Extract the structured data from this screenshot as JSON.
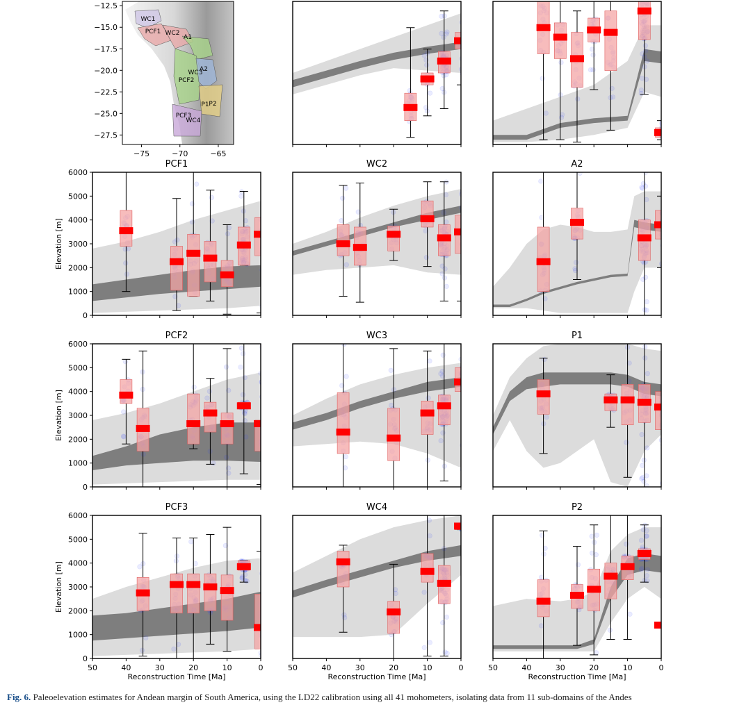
{
  "figure": {
    "caption_label": "Fig. 6.",
    "caption_text": "Paleoelevation estimates for Andean margin of South America, using the LD22 calibration using all 41 mohometers, isolating data from 11 sub-domains of the Andes"
  },
  "map": {
    "lon_ticks": [
      "−75",
      "−70",
      "−65"
    ],
    "lat_ticks": [
      "−12.5",
      "−15.0",
      "−17.5",
      "−20.0",
      "−22.5",
      "−25.0",
      "−27.5"
    ],
    "region_labels": [
      "WC1",
      "PCF1",
      "WC2",
      "A1",
      "A2",
      "WC3",
      "PCF2",
      "P1",
      "P2",
      "PCF3",
      "WC4"
    ],
    "region_colors": [
      "#cfc7e6",
      "#e9a9a9",
      "#a7d38a",
      "#9fb6d9",
      "#e5cf86",
      "#c8a8d8"
    ]
  },
  "axes": {
    "ylabel": "Elevation [m]",
    "xlabel": "Reconstruction Time [Ma]",
    "x_ticks": [
      "50",
      "40",
      "30",
      "20",
      "10",
      "0"
    ],
    "y_ticks": [
      "0",
      "1000",
      "2000",
      "3000",
      "4000",
      "5000",
      "6000"
    ]
  },
  "colors": {
    "outer_band": "#dcdcdc",
    "inner_band": "#7e7e7e",
    "box_fill": "#f4a6a6",
    "median": "#ff0000",
    "points": "#3040ff"
  },
  "chart_data": [
    {
      "title": "",
      "type": "box",
      "xlim": [
        50,
        0
      ],
      "ylim": [
        0,
        6000
      ],
      "band_x": [
        50,
        40,
        30,
        20,
        10,
        0
      ],
      "outer_lo": [
        2100,
        2500,
        2900,
        3200,
        3100,
        3000
      ],
      "outer_hi": [
        3000,
        3500,
        4000,
        4500,
        5000,
        5500
      ],
      "inner_lo": [
        2400,
        2800,
        3200,
        3550,
        3800,
        4000
      ],
      "inner_hi": [
        2700,
        3100,
        3500,
        3850,
        4100,
        4300
      ],
      "boxes": [
        {
          "x": 15,
          "min": 300,
          "q1": 1000,
          "median": 1550,
          "q3": 2150,
          "max": 4900
        },
        {
          "x": 10,
          "min": 1200,
          "q1": 2500,
          "median": 2750,
          "q3": 3000,
          "max": 4000
        },
        {
          "x": 5,
          "min": 1500,
          "q1": 3000,
          "median": 3500,
          "q3": 3900,
          "max": 5600
        },
        {
          "x": 0,
          "min": 2500,
          "q1": 4000,
          "median": 4350,
          "q3": 4700,
          "max": 6000
        }
      ]
    },
    {
      "title": "",
      "type": "box",
      "xlim": [
        50,
        0
      ],
      "ylim": [
        0,
        6000
      ],
      "band_x": [
        50,
        40,
        30,
        20,
        10,
        5,
        0
      ],
      "outer_lo": [
        100,
        100,
        200,
        400,
        700,
        2200,
        2000
      ],
      "outer_hi": [
        1000,
        1500,
        2000,
        2500,
        3500,
        5000,
        5000
      ],
      "inner_lo": [
        200,
        200,
        700,
        900,
        1000,
        3500,
        3400
      ],
      "inner_hi": [
        400,
        400,
        900,
        1100,
        1200,
        4000,
        3900
      ],
      "boxes": [
        {
          "x": 35,
          "min": 200,
          "q1": 3800,
          "median": 4900,
          "q3": 6000,
          "max": 6000
        },
        {
          "x": 30,
          "min": 200,
          "q1": 3600,
          "median": 4500,
          "q3": 5100,
          "max": 6000
        },
        {
          "x": 25,
          "min": 100,
          "q1": 2400,
          "median": 3600,
          "q3": 4700,
          "max": 5600
        },
        {
          "x": 20,
          "min": 2300,
          "q1": 4300,
          "median": 4800,
          "q3": 5300,
          "max": 6000
        },
        {
          "x": 15,
          "min": 600,
          "q1": 3100,
          "median": 4700,
          "q3": 5600,
          "max": 6000
        },
        {
          "x": 5,
          "min": 2100,
          "q1": 4400,
          "median": 5600,
          "q3": 6000,
          "max": 6000
        },
        {
          "x": 0,
          "min": 200,
          "q1": 300,
          "median": 500,
          "q3": 700,
          "max": 1000
        }
      ]
    },
    {
      "title": "PCF1",
      "type": "box",
      "xlim": [
        50,
        0
      ],
      "ylim": [
        0,
        6000
      ],
      "band_x": [
        50,
        40,
        30,
        20,
        10,
        0
      ],
      "outer_lo": [
        100,
        150,
        200,
        250,
        300,
        400
      ],
      "outer_hi": [
        2800,
        3100,
        3500,
        4000,
        4400,
        4800
      ],
      "inner_lo": [
        600,
        750,
        900,
        1000,
        1100,
        1200
      ],
      "inner_hi": [
        1300,
        1500,
        1700,
        1900,
        2050,
        2100
      ],
      "boxes": [
        {
          "x": 40,
          "min": 1000,
          "q1": 2900,
          "median": 3550,
          "q3": 4400,
          "max": 6000
        },
        {
          "x": 25,
          "min": 200,
          "q1": 1050,
          "median": 2250,
          "q3": 2900,
          "max": 4900
        },
        {
          "x": 20,
          "min": 800,
          "q1": 800,
          "median": 2600,
          "q3": 3400,
          "max": 6000
        },
        {
          "x": 15,
          "min": 600,
          "q1": 1400,
          "median": 2400,
          "q3": 3100,
          "max": 5250
        },
        {
          "x": 10,
          "min": 50,
          "q1": 1200,
          "median": 1700,
          "q3": 2300,
          "max": 3800
        },
        {
          "x": 5,
          "min": 2100,
          "q1": 2100,
          "median": 2950,
          "q3": 3700,
          "max": 5200
        },
        {
          "x": 0,
          "min": 100,
          "q1": 2500,
          "median": 3400,
          "q3": 4100,
          "max": 6000
        }
      ]
    },
    {
      "title": "WC2",
      "type": "box",
      "xlim": [
        50,
        0
      ],
      "ylim": [
        0,
        6000
      ],
      "band_x": [
        50,
        40,
        30,
        20,
        10,
        0
      ],
      "outer_lo": [
        1700,
        1900,
        2000,
        2100,
        1800,
        1700
      ],
      "outer_hi": [
        3000,
        3500,
        4100,
        4600,
        5000,
        5300
      ],
      "inner_lo": [
        2500,
        2900,
        3300,
        3700,
        4000,
        4300
      ],
      "inner_hi": [
        2700,
        3100,
        3500,
        3900,
        4300,
        4600
      ],
      "boxes": [
        {
          "x": 35,
          "min": 800,
          "q1": 2500,
          "median": 3000,
          "q3": 3800,
          "max": 5450
        },
        {
          "x": 30,
          "min": 550,
          "q1": 2100,
          "median": 2850,
          "q3": 3700,
          "max": 5550
        },
        {
          "x": 20,
          "min": 2300,
          "q1": 2700,
          "median": 3400,
          "q3": 3750,
          "max": 4450
        },
        {
          "x": 10,
          "min": 2050,
          "q1": 3700,
          "median": 4050,
          "q3": 4800,
          "max": 5600
        },
        {
          "x": 5,
          "min": 600,
          "q1": 2500,
          "median": 3250,
          "q3": 3800,
          "max": 5600
        },
        {
          "x": 0,
          "min": 600,
          "q1": 2600,
          "median": 3500,
          "q3": 4200,
          "max": 6000
        }
      ]
    },
    {
      "title": "A2",
      "type": "box",
      "xlim": [
        50,
        0
      ],
      "ylim": [
        0,
        6000
      ],
      "band_x": [
        50,
        45,
        40,
        35,
        30,
        25,
        20,
        15,
        10,
        8,
        5,
        0
      ],
      "outer_lo": [
        300,
        300,
        300,
        200,
        100,
        100,
        100,
        100,
        100,
        1000,
        2000,
        2000
      ],
      "outer_hi": [
        1200,
        2000,
        3000,
        3600,
        3800,
        3700,
        3500,
        3500,
        3600,
        5000,
        5200,
        5200
      ],
      "inner_lo": [
        350,
        350,
        600,
        900,
        1100,
        1300,
        1450,
        1600,
        1650,
        3700,
        3600,
        3500
      ],
      "inner_hi": [
        450,
        450,
        700,
        1000,
        1200,
        1400,
        1550,
        1700,
        1750,
        4000,
        3900,
        3800
      ],
      "boxes": [
        {
          "x": 35,
          "min": 0,
          "q1": 1000,
          "median": 2250,
          "q3": 3700,
          "max": 6000
        },
        {
          "x": 25,
          "min": 1500,
          "q1": 3200,
          "median": 3900,
          "q3": 4500,
          "max": 6000
        },
        {
          "x": 5,
          "min": 0,
          "q1": 2300,
          "median": 3250,
          "q3": 4000,
          "max": 6000
        },
        {
          "x": 0,
          "min": 2000,
          "q1": 3200,
          "median": 3800,
          "q3": 4400,
          "max": 5000
        }
      ]
    },
    {
      "title": "PCF2",
      "type": "box",
      "xlim": [
        50,
        0
      ],
      "ylim": [
        0,
        6000
      ],
      "band_x": [
        50,
        40,
        30,
        20,
        10,
        0
      ],
      "outer_lo": [
        100,
        150,
        200,
        250,
        300,
        300
      ],
      "outer_hi": [
        2800,
        3100,
        3500,
        4000,
        4500,
        4800
      ],
      "inner_lo": [
        700,
        900,
        1000,
        1100,
        1100,
        1050
      ],
      "inner_hi": [
        1300,
        1700,
        2200,
        2500,
        2700,
        2700
      ],
      "boxes": [
        {
          "x": 40,
          "min": 1800,
          "q1": 3500,
          "median": 3850,
          "q3": 4500,
          "max": 5350
        },
        {
          "x": 35,
          "min": 0,
          "q1": 1500,
          "median": 2450,
          "q3": 3300,
          "max": 5700
        },
        {
          "x": 20,
          "min": 1600,
          "q1": 1800,
          "median": 2650,
          "q3": 3900,
          "max": 6000
        },
        {
          "x": 15,
          "min": 950,
          "q1": 2300,
          "median": 3100,
          "q3": 3550,
          "max": 4550
        },
        {
          "x": 10,
          "min": 0,
          "q1": 1800,
          "median": 2650,
          "q3": 3100,
          "max": 5800
        },
        {
          "x": 5,
          "min": 550,
          "q1": 3300,
          "median": 3400,
          "q3": 3550,
          "max": 6000
        },
        {
          "x": 0,
          "min": 100,
          "q1": 1500,
          "median": 2650,
          "q3": 2800,
          "max": 6000
        }
      ]
    },
    {
      "title": "WC3",
      "type": "box",
      "xlim": [
        50,
        0
      ],
      "ylim": [
        0,
        6000
      ],
      "band_x": [
        50,
        40,
        30,
        20,
        10,
        0
      ],
      "outer_lo": [
        1700,
        1800,
        1900,
        1800,
        1400,
        800
      ],
      "outer_hi": [
        3000,
        3700,
        4300,
        4700,
        5000,
        5200
      ],
      "inner_lo": [
        2400,
        2800,
        3300,
        3700,
        4000,
        4200
      ],
      "inner_hi": [
        2700,
        3100,
        3600,
        4000,
        4400,
        4600
      ],
      "boxes": [
        {
          "x": 35,
          "min": 0,
          "q1": 1400,
          "median": 2300,
          "q3": 3950,
          "max": 6000
        },
        {
          "x": 20,
          "min": 0,
          "q1": 1100,
          "median": 2050,
          "q3": 3300,
          "max": 5800
        },
        {
          "x": 10,
          "min": 0,
          "q1": 2200,
          "median": 3100,
          "q3": 3600,
          "max": 5700
        },
        {
          "x": 5,
          "min": 250,
          "q1": 2600,
          "median": 3400,
          "q3": 3850,
          "max": 6000
        },
        {
          "x": 0,
          "min": 0,
          "q1": 4000,
          "median": 4400,
          "q3": 5000,
          "max": 6000
        }
      ]
    },
    {
      "title": "P1",
      "type": "box",
      "xlim": [
        50,
        0
      ],
      "ylim": [
        0,
        6000
      ],
      "band_x": [
        50,
        45,
        40,
        35,
        30,
        25,
        20,
        15,
        10,
        5,
        0
      ],
      "outer_lo": [
        1500,
        2800,
        1500,
        800,
        1000,
        1500,
        2000,
        200,
        0,
        1500,
        2200
      ],
      "outer_hi": [
        3000,
        4600,
        5400,
        5900,
        6000,
        6000,
        6000,
        6000,
        6000,
        5800,
        5700
      ],
      "inner_lo": [
        2200,
        3600,
        4100,
        4200,
        4300,
        4300,
        4300,
        4300,
        4200,
        3900,
        3800
      ],
      "inner_hi": [
        2500,
        4000,
        4600,
        4800,
        4800,
        4800,
        4800,
        4800,
        4700,
        4400,
        4300
      ],
      "boxes": [
        {
          "x": 35,
          "min": 1400,
          "q1": 3050,
          "median": 3900,
          "q3": 4500,
          "max": 5400
        },
        {
          "x": 15,
          "min": 2500,
          "q1": 3200,
          "median": 3650,
          "q3": 3900,
          "max": 4700
        },
        {
          "x": 10,
          "min": 400,
          "q1": 2600,
          "median": 3650,
          "q3": 4300,
          "max": 6000
        },
        {
          "x": 5,
          "min": 0,
          "q1": 2700,
          "median": 3550,
          "q3": 4300,
          "max": 6000
        },
        {
          "x": 0,
          "min": 0,
          "q1": 2400,
          "median": 3350,
          "q3": 4000,
          "max": 6000
        }
      ]
    },
    {
      "title": "PCF3",
      "type": "box",
      "xlim": [
        50,
        0
      ],
      "ylim": [
        0,
        6000
      ],
      "band_x": [
        50,
        40,
        30,
        20,
        10,
        0
      ],
      "outer_lo": [
        100,
        150,
        200,
        250,
        300,
        400
      ],
      "outer_hi": [
        2500,
        3000,
        3400,
        3800,
        4100,
        4200
      ],
      "inner_lo": [
        750,
        850,
        950,
        1050,
        1150,
        1300
      ],
      "inner_hi": [
        1800,
        1900,
        2100,
        2300,
        2500,
        2800
      ],
      "boxes": [
        {
          "x": 35,
          "min": 100,
          "q1": 2000,
          "median": 2750,
          "q3": 3400,
          "max": 5250
        },
        {
          "x": 25,
          "min": 0,
          "q1": 1900,
          "median": 3100,
          "q3": 3550,
          "max": 5050
        },
        {
          "x": 20,
          "min": 0,
          "q1": 1900,
          "median": 3100,
          "q3": 3550,
          "max": 5050
        },
        {
          "x": 15,
          "min": 600,
          "q1": 2000,
          "median": 3000,
          "q3": 3550,
          "max": 5200
        },
        {
          "x": 10,
          "min": 300,
          "q1": 1600,
          "median": 2850,
          "q3": 3500,
          "max": 5500
        },
        {
          "x": 5,
          "min": 3200,
          "q1": 3700,
          "median": 3850,
          "q3": 4100,
          "max": 4100
        },
        {
          "x": 0,
          "min": 0,
          "q1": 400,
          "median": 1300,
          "q3": 2700,
          "max": 4500
        }
      ]
    },
    {
      "title": "WC4",
      "type": "box",
      "xlim": [
        50,
        0
      ],
      "ylim": [
        0,
        6000
      ],
      "band_x": [
        50,
        40,
        30,
        20,
        10,
        0
      ],
      "outer_lo": [
        900,
        900,
        900,
        1000,
        2300,
        3500
      ],
      "outer_hi": [
        3600,
        4300,
        5000,
        5500,
        5800,
        6000
      ],
      "inner_lo": [
        2550,
        3000,
        3400,
        3800,
        4100,
        4300
      ],
      "inner_hi": [
        2850,
        3300,
        3700,
        4100,
        4500,
        4750
      ],
      "boxes": [
        {
          "x": 35,
          "min": 1100,
          "q1": 3000,
          "median": 4050,
          "q3": 4500,
          "max": 4750
        },
        {
          "x": 20,
          "min": 0,
          "q1": 1050,
          "median": 1950,
          "q3": 2400,
          "max": 3950
        },
        {
          "x": 10,
          "min": 100,
          "q1": 3200,
          "median": 3650,
          "q3": 4400,
          "max": 6000
        },
        {
          "x": 5,
          "min": 100,
          "q1": 2300,
          "median": 3150,
          "q3": 3900,
          "max": 6000
        },
        {
          "x": 0,
          "min": 5400,
          "q1": 5400,
          "median": 5550,
          "q3": 5650,
          "max": 5650
        }
      ]
    },
    {
      "title": "P2",
      "type": "box",
      "xlim": [
        50,
        0
      ],
      "ylim": [
        0,
        6000
      ],
      "band_x": [
        50,
        40,
        30,
        25,
        20,
        15,
        10,
        5,
        0
      ],
      "outer_lo": [
        300,
        300,
        300,
        300,
        300,
        1500,
        2500,
        3000,
        2500
      ],
      "outer_hi": [
        2200,
        2500,
        2400,
        2500,
        2800,
        4500,
        5200,
        5500,
        5500
      ],
      "inner_lo": [
        400,
        400,
        400,
        400,
        600,
        2500,
        3500,
        3700,
        3600
      ],
      "inner_hi": [
        550,
        550,
        550,
        550,
        800,
        3000,
        4200,
        4400,
        4300
      ],
      "boxes": [
        {
          "x": 35,
          "min": 0,
          "q1": 1750,
          "median": 2400,
          "q3": 3300,
          "max": 5350
        },
        {
          "x": 25,
          "min": 550,
          "q1": 2100,
          "median": 2650,
          "q3": 3100,
          "max": 4700
        },
        {
          "x": 20,
          "min": 150,
          "q1": 2000,
          "median": 2900,
          "q3": 3750,
          "max": 5600
        },
        {
          "x": 15,
          "min": 800,
          "q1": 2500,
          "median": 3450,
          "q3": 4000,
          "max": 6000
        },
        {
          "x": 10,
          "min": 800,
          "q1": 3300,
          "median": 3850,
          "q3": 4300,
          "max": 6000
        },
        {
          "x": 5,
          "min": 3200,
          "q1": 4150,
          "median": 4400,
          "q3": 4600,
          "max": 5600
        },
        {
          "x": 0,
          "min": 1300,
          "q1": 1300,
          "median": 1400,
          "q3": 1500,
          "max": 1500
        }
      ]
    }
  ]
}
